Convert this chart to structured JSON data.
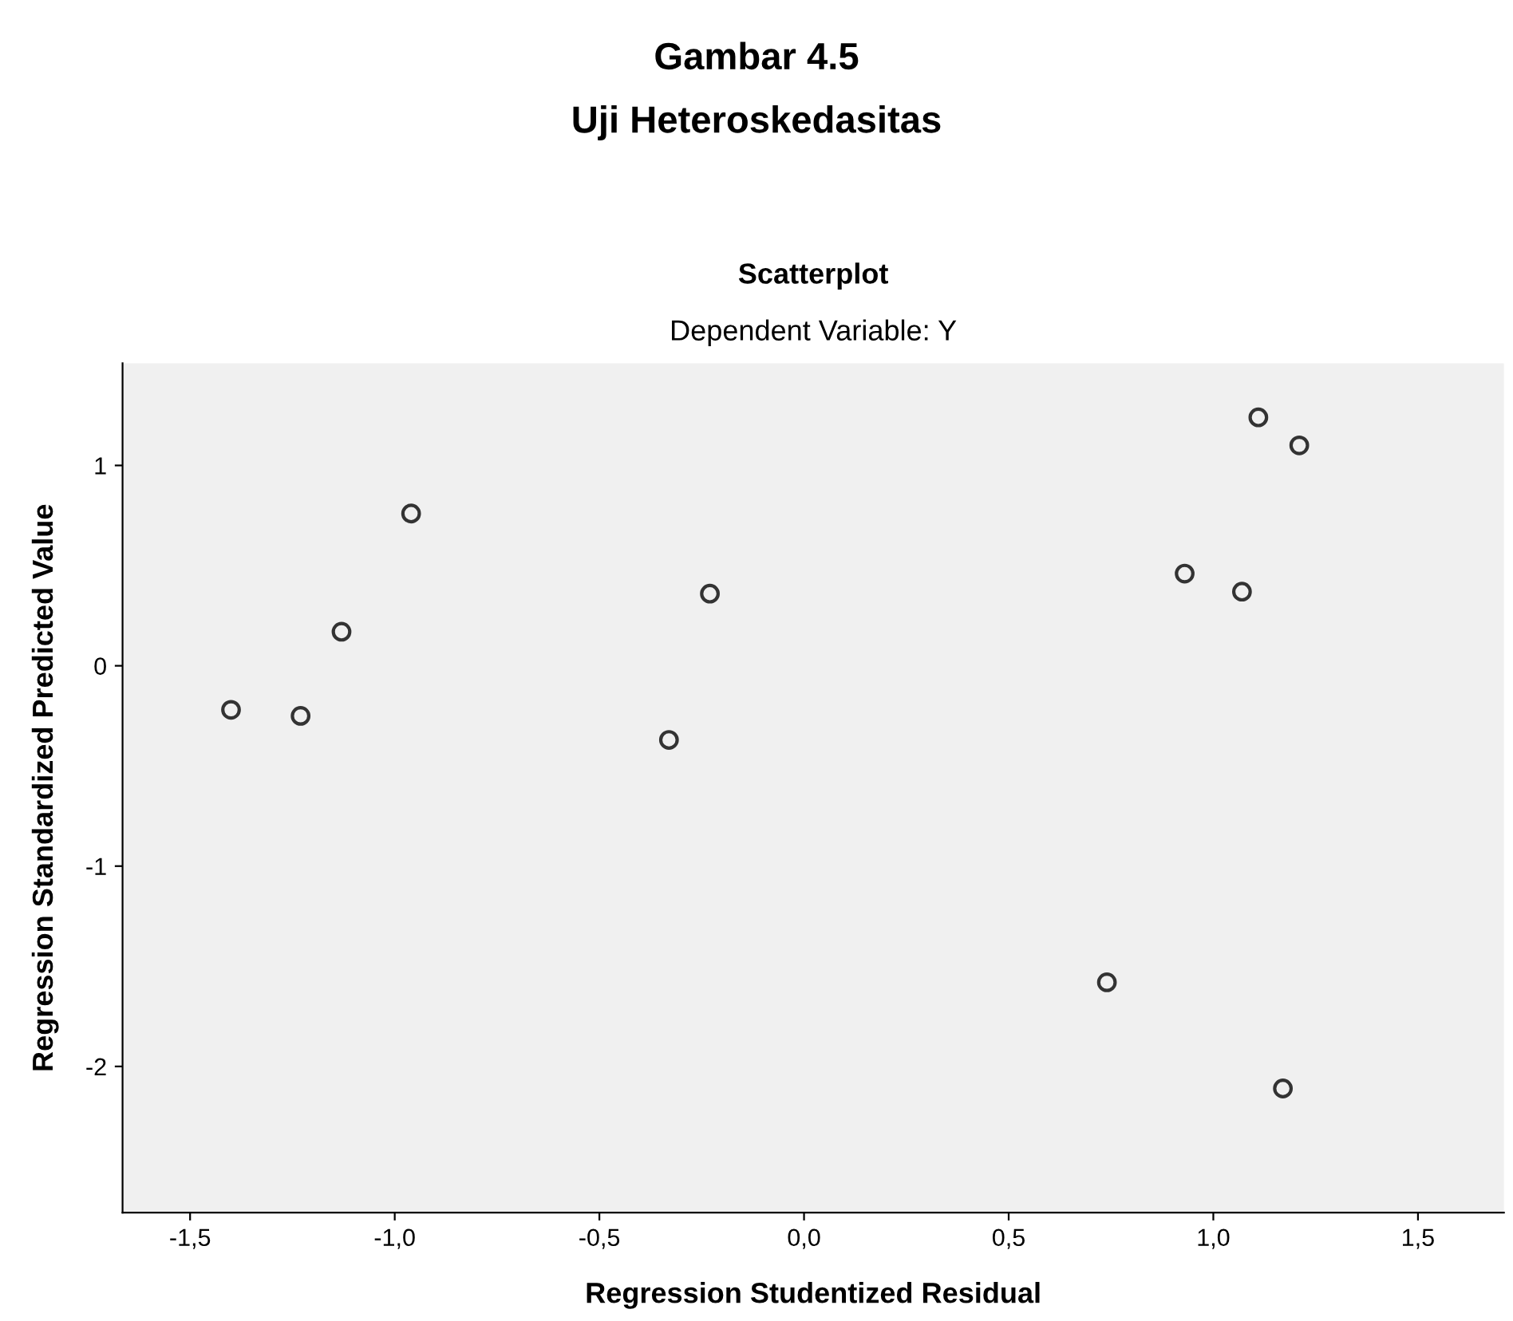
{
  "chart_data": {
    "type": "scatter",
    "title": "Scatterplot",
    "subtitle": "Dependent Variable: Y",
    "annotations": [
      "Gambar 4.5",
      "Uji Heteroskedasitas"
    ],
    "xlabel": "Regression Studentized Residual",
    "ylabel": "Regression Standardized Predicted Value",
    "series": [
      {
        "color": "#333333",
        "x": [
          -1.4,
          -1.23,
          -1.13,
          -0.96,
          -0.23,
          -0.33,
          1.11,
          1.21,
          0.93,
          1.07,
          0.74,
          1.17
        ],
        "values": [
          -0.22,
          -0.25,
          0.17,
          0.76,
          0.36,
          -0.37,
          1.24,
          1.1,
          0.46,
          0.37,
          -1.58,
          -2.11
        ]
      }
    ],
    "marker": "circle",
    "grid": false,
    "legend": false,
    "xlim": [
      -1.665,
      1.71
    ],
    "ylim": [
      -2.73,
      1.51
    ],
    "xticks": [
      {
        "value": -1.5,
        "label": "-1,5"
      },
      {
        "value": -1.0,
        "label": "-1,0"
      },
      {
        "value": -0.5,
        "label": "-0,5"
      },
      {
        "value": 0.0,
        "label": "0,0"
      },
      {
        "value": 0.5,
        "label": "0,5"
      },
      {
        "value": 1.0,
        "label": "1,0"
      },
      {
        "value": 1.5,
        "label": "1,5"
      }
    ],
    "yticks": [
      1,
      0,
      -1,
      -2
    ]
  }
}
